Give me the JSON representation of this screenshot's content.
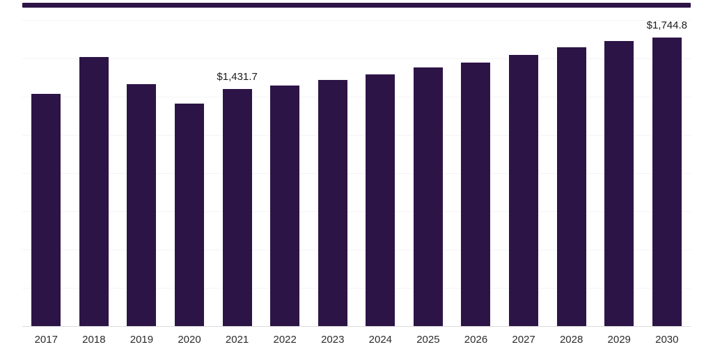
{
  "page": {
    "background_color": "#ffffff"
  },
  "header": {
    "strip_color": "#2d1447"
  },
  "chart_data": {
    "type": "bar",
    "title": "",
    "xlabel": "",
    "ylabel": "",
    "categories": [
      "2017",
      "2018",
      "2019",
      "2020",
      "2021",
      "2022",
      "2023",
      "2024",
      "2025",
      "2026",
      "2027",
      "2028",
      "2029",
      "2030"
    ],
    "values": [
      1405.0,
      1626.0,
      1464.0,
      1346.0,
      1431.7,
      1456.0,
      1490.0,
      1524.0,
      1562.0,
      1592.0,
      1639.0,
      1685.0,
      1723.0,
      1744.8
    ],
    "annotations": [
      {
        "category": "2021",
        "text": "$1,431.7"
      },
      {
        "category": "2030",
        "text": "$1,744.8"
      }
    ],
    "bar_color": "#2d1447",
    "ylim": [
      0,
      1850
    ],
    "grid": true,
    "legend": "none"
  }
}
